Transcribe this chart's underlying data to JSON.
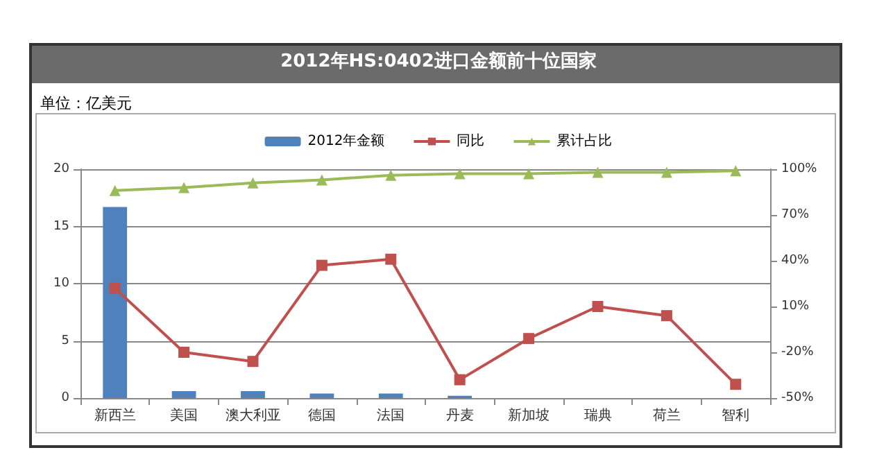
{
  "chart_data": {
    "type": "bar",
    "title": "2012年HS:0402进口金额前十位国家",
    "ylabel": "单位：亿美元",
    "categories": [
      "新西兰",
      "美国",
      "澳大利亚",
      "德国",
      "法国",
      "丹麦",
      "新加坡",
      "瑞典",
      "荷兰",
      "智利"
    ],
    "series": [
      {
        "name": "2012年金额",
        "color": "#4f81bd",
        "values": [
          16.7,
          0.6,
          0.6,
          0.4,
          0.4,
          0.2,
          null,
          null,
          null,
          null
        ]
      },
      {
        "name": "同比",
        "type": "line",
        "axis": "y2",
        "marker": "square",
        "color": "#c0504d",
        "values": [
          22,
          -20,
          -26,
          37,
          41,
          -38,
          -11,
          10,
          4,
          -41
        ]
      },
      {
        "name": "累计占比",
        "type": "line",
        "axis": "y2",
        "marker": "triangle",
        "color": "#9bbb59",
        "values": [
          86,
          88,
          91,
          93,
          96,
          97,
          97,
          98,
          98,
          99
        ]
      }
    ],
    "ylim": [
      0,
      20
    ],
    "yticks": [
      0,
      5,
      10,
      15,
      20
    ],
    "y2lim": [
      -50,
      100
    ],
    "y2ticks": [
      {
        "value": -50,
        "label": "-50%"
      },
      {
        "value": -20,
        "label": "-20%"
      },
      {
        "value": 10,
        "label": "10%"
      },
      {
        "value": 40,
        "label": "40%"
      },
      {
        "value": 70,
        "label": "70%"
      },
      {
        "value": 100,
        "label": "100%"
      }
    ],
    "grid": "y",
    "legend": "top"
  }
}
